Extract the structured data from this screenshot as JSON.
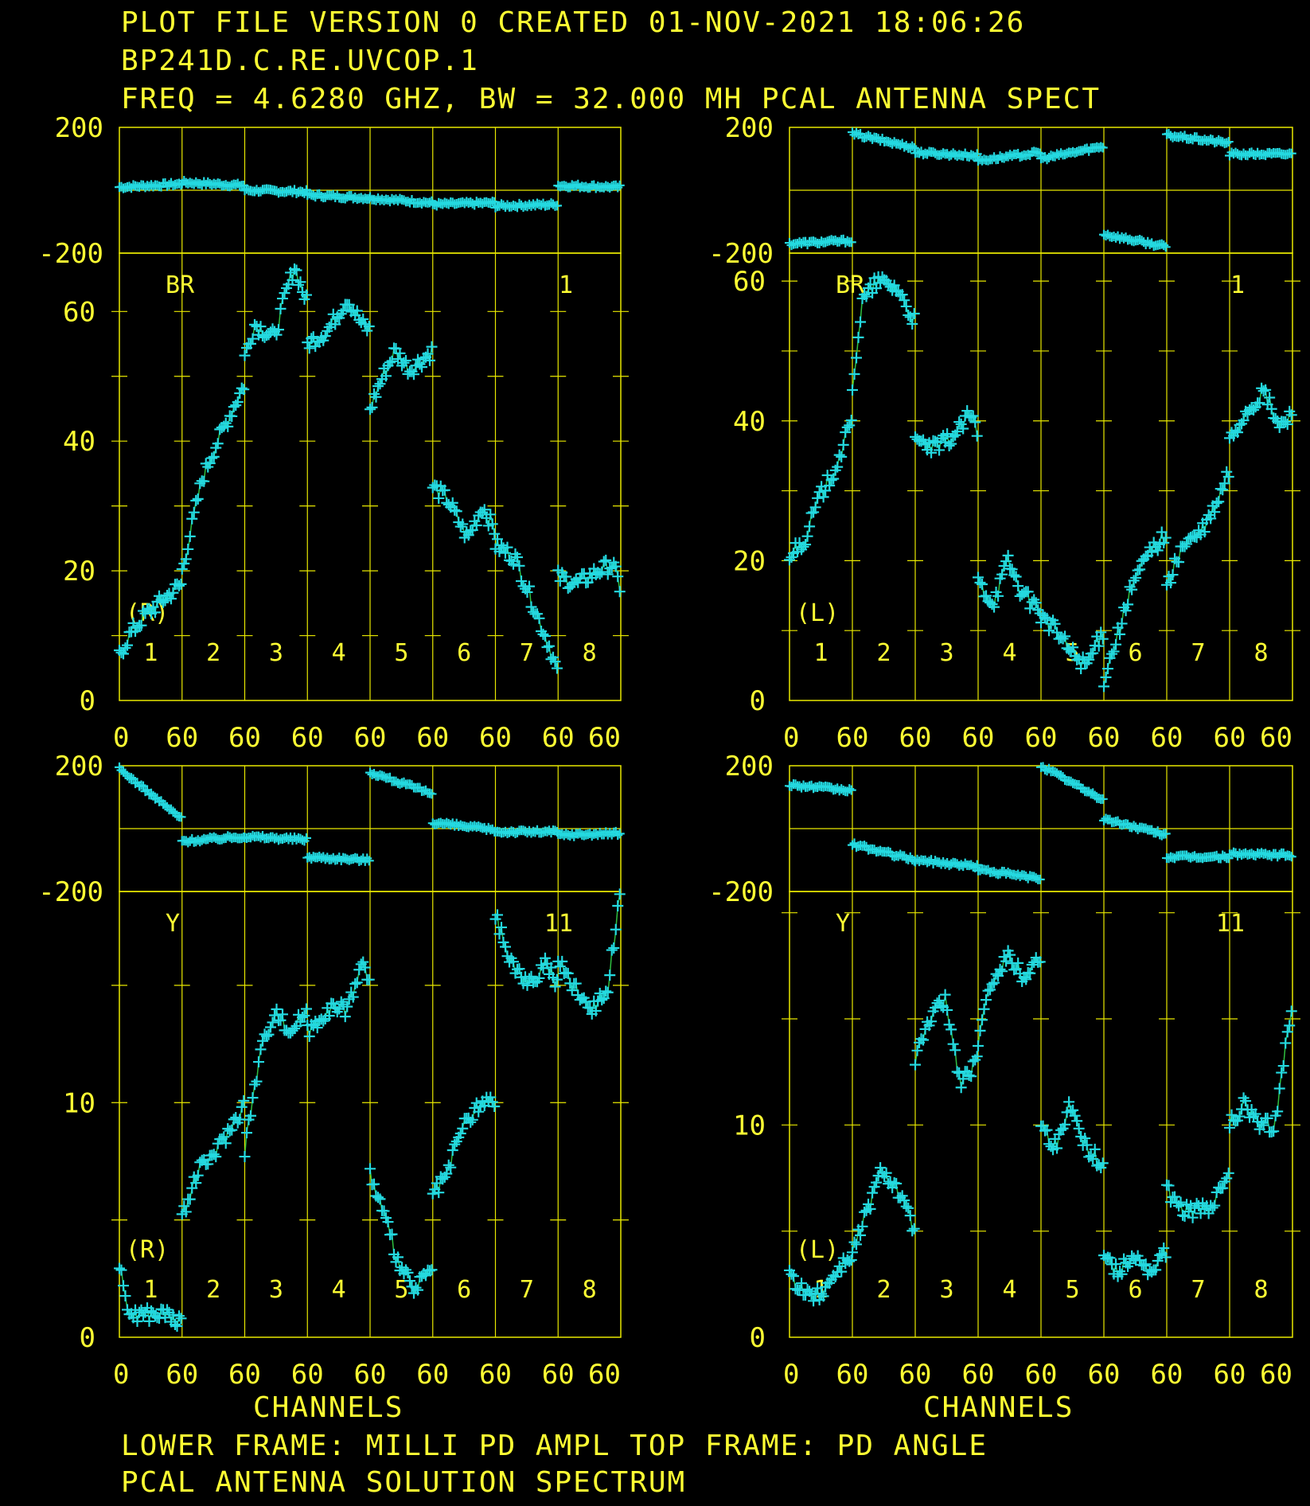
{
  "header": {
    "line1": "PLOT FILE VERSION 0  CREATED 01-NOV-2021 18:06:26",
    "line2": "BP241D.C.RE.UVCOP.1",
    "line3": "FREQ = 4.6280 GHZ, BW = 32.000 MH   PCAL ANTENNA SPECT"
  },
  "footer": {
    "xlabel": "CHANNELS",
    "line1": "LOWER FRAME: MILLI PD AMPL   TOP FRAME: PD ANGLE",
    "line2": "PCAL ANTENNA SOLUTION SPECTRUM"
  },
  "colors": {
    "text": "#ffff33",
    "grid": "#e8e800",
    "marker": "#24d9e0",
    "line": "#2fbf3f",
    "background": "#000000"
  },
  "chart_data": [
    {
      "type": "scatter",
      "antenna": "BR",
      "polarization": "(R)",
      "source_number": "1",
      "phase_ylim": [
        -200,
        200
      ],
      "phase_ticks": [
        "200",
        "-200"
      ],
      "amp_ylim": [
        0,
        69
      ],
      "amp_ticks": [
        "60",
        "40",
        "20",
        "0"
      ],
      "amp_tick_values": [
        60,
        40,
        20,
        0
      ],
      "if_labels": [
        "1",
        "2",
        "3",
        "4",
        "5",
        "6",
        "7",
        "8"
      ],
      "x_tick_labels": [
        "0",
        "60",
        "60",
        "60",
        "60",
        "60",
        "60",
        "60",
        "60"
      ],
      "phase_series": [
        {
          "if": 1,
          "start": 10,
          "end": 20
        },
        {
          "if": 2,
          "start": 25,
          "end": 15
        },
        {
          "if": 3,
          "start": 0,
          "end": -5
        },
        {
          "if": 4,
          "start": -15,
          "end": -25
        },
        {
          "if": 5,
          "start": -25,
          "end": -40
        },
        {
          "if": 6,
          "start": -45,
          "end": -40
        },
        {
          "if": 7,
          "start": -50,
          "end": -45
        },
        {
          "if": 8,
          "start": 15,
          "end": 10
        }
      ],
      "amp_series": [
        {
          "if": 1,
          "points": [
            [
              0,
              7
            ],
            [
              10,
              10
            ],
            [
              25,
              13
            ],
            [
              40,
              15
            ],
            [
              55,
              17
            ],
            [
              63,
              18
            ]
          ]
        },
        {
          "if": 2,
          "points": [
            [
              0,
              20
            ],
            [
              10,
              27
            ],
            [
              20,
              34
            ],
            [
              30,
              38
            ],
            [
              45,
              43
            ],
            [
              63,
              49
            ]
          ]
        },
        {
          "if": 3,
          "points": [
            [
              0,
              53
            ],
            [
              10,
              58
            ],
            [
              30,
              56
            ],
            [
              40,
              62
            ],
            [
              50,
              67
            ],
            [
              63,
              61
            ]
          ]
        },
        {
          "if": 4,
          "points": [
            [
              0,
              55
            ],
            [
              20,
              57
            ],
            [
              40,
              62
            ],
            [
              55,
              58
            ],
            [
              63,
              57
            ]
          ]
        },
        {
          "if": 5,
          "points": [
            [
              0,
              45
            ],
            [
              10,
              49
            ],
            [
              25,
              54
            ],
            [
              40,
              51
            ],
            [
              63,
              54
            ]
          ]
        },
        {
          "if": 6,
          "points": [
            [
              0,
              33
            ],
            [
              15,
              31
            ],
            [
              35,
              25
            ],
            [
              50,
              30
            ],
            [
              63,
              26
            ]
          ]
        },
        {
          "if": 7,
          "points": [
            [
              0,
              24
            ],
            [
              20,
              22
            ],
            [
              40,
              14
            ],
            [
              55,
              8
            ],
            [
              63,
              4
            ]
          ]
        },
        {
          "if": 8,
          "points": [
            [
              0,
              19
            ],
            [
              20,
              18
            ],
            [
              40,
              20
            ],
            [
              55,
              21
            ],
            [
              63,
              17
            ]
          ]
        }
      ]
    },
    {
      "type": "scatter",
      "antenna": "BR",
      "polarization": "(L)",
      "source_number": "1",
      "phase_ylim": [
        -200,
        200
      ],
      "phase_ticks": [
        "200",
        "-200"
      ],
      "amp_ylim": [
        0,
        64
      ],
      "amp_ticks": [
        "60",
        "40",
        "20",
        "0"
      ],
      "amp_tick_values": [
        60,
        40,
        20,
        0
      ],
      "if_labels": [
        "1",
        "2",
        "3",
        "4",
        "5",
        "6",
        "7",
        "8"
      ],
      "x_tick_labels": [
        "0",
        "60",
        "60",
        "60",
        "60",
        "60",
        "60",
        "60",
        "60"
      ],
      "phase_series": [
        {
          "if": 1,
          "start": -170,
          "end": -160
        },
        {
          "if": 2,
          "start": 180,
          "end": 135
        },
        {
          "if": 3,
          "start": 120,
          "end": 110
        },
        {
          "if": 4,
          "start": 95,
          "end": 120
        },
        {
          "if": 5,
          "start": 100,
          "end": 140
        },
        {
          "if": 6,
          "start": -140,
          "end": -180
        },
        {
          "if": 7,
          "start": 175,
          "end": 150
        },
        {
          "if": 8,
          "start": 115,
          "end": 115
        }
      ],
      "amp_series": [
        {
          "if": 1,
          "points": [
            [
              0,
              21
            ],
            [
              15,
              23
            ],
            [
              30,
              29
            ],
            [
              45,
              33
            ],
            [
              63,
              40
            ]
          ]
        },
        {
          "if": 2,
          "points": [
            [
              0,
              45
            ],
            [
              10,
              57
            ],
            [
              25,
              60
            ],
            [
              45,
              59
            ],
            [
              63,
              54
            ]
          ]
        },
        {
          "if": 3,
          "points": [
            [
              0,
              37
            ],
            [
              20,
              36
            ],
            [
              40,
              38
            ],
            [
              55,
              41
            ],
            [
              63,
              38
            ]
          ]
        },
        {
          "if": 4,
          "points": [
            [
              0,
              17
            ],
            [
              15,
              14
            ],
            [
              30,
              20
            ],
            [
              45,
              15
            ],
            [
              63,
              13
            ]
          ]
        },
        {
          "if": 5,
          "points": [
            [
              0,
              12
            ],
            [
              15,
              10
            ],
            [
              30,
              7
            ],
            [
              45,
              5
            ],
            [
              63,
              10
            ]
          ]
        },
        {
          "if": 6,
          "points": [
            [
              0,
              3
            ],
            [
              15,
              10
            ],
            [
              30,
              17
            ],
            [
              45,
              21
            ],
            [
              63,
              24
            ]
          ]
        },
        {
          "if": 7,
          "points": [
            [
              0,
              16
            ],
            [
              15,
              22
            ],
            [
              35,
              24
            ],
            [
              50,
              28
            ],
            [
              63,
              33
            ]
          ]
        },
        {
          "if": 8,
          "points": [
            [
              0,
              37
            ],
            [
              15,
              41
            ],
            [
              35,
              44
            ],
            [
              50,
              39
            ],
            [
              63,
              41
            ]
          ]
        }
      ]
    },
    {
      "type": "scatter",
      "antenna": "Y",
      "polarization": "(R)",
      "source_number": "11",
      "phase_ylim": [
        -200,
        200
      ],
      "phase_ticks": [
        "200",
        "-200"
      ],
      "amp_ylim": [
        0,
        19
      ],
      "amp_ticks": [
        "10",
        "0"
      ],
      "amp_tick_values": [
        10,
        0
      ],
      "if_labels": [
        "1",
        "2",
        "3",
        "4",
        "5",
        "6",
        "7",
        "8"
      ],
      "x_tick_labels": [
        "0",
        "60",
        "60",
        "60",
        "60",
        "60",
        "60",
        "60",
        "60"
      ],
      "phase_series": [
        {
          "if": 1,
          "start": 190,
          "end": 30
        },
        {
          "if": 2,
          "start": -40,
          "end": -25
        },
        {
          "if": 3,
          "start": -25,
          "end": -35
        },
        {
          "if": 4,
          "start": -90,
          "end": -100
        },
        {
          "if": 5,
          "start": 180,
          "end": 110
        },
        {
          "if": 6,
          "start": 20,
          "end": -5
        },
        {
          "if": 7,
          "start": -10,
          "end": -10
        },
        {
          "if": 8,
          "start": -20,
          "end": -15
        }
      ],
      "amp_series": [
        {
          "if": 1,
          "points": [
            [
              0,
              3
            ],
            [
              10,
              1
            ],
            [
              30,
              1
            ],
            [
              50,
              1
            ],
            [
              63,
              0.5
            ]
          ]
        },
        {
          "if": 2,
          "points": [
            [
              0,
              5
            ],
            [
              15,
              7
            ],
            [
              35,
              8
            ],
            [
              50,
              9
            ],
            [
              63,
              10
            ]
          ]
        },
        {
          "if": 3,
          "points": [
            [
              0,
              8
            ],
            [
              15,
              12
            ],
            [
              30,
              14
            ],
            [
              45,
              13
            ],
            [
              63,
              14
            ]
          ]
        },
        {
          "if": 4,
          "points": [
            [
              0,
              13
            ],
            [
              20,
              14
            ],
            [
              40,
              14
            ],
            [
              55,
              16
            ],
            [
              63,
              15
            ]
          ]
        },
        {
          "if": 5,
          "points": [
            [
              0,
              7
            ],
            [
              15,
              5
            ],
            [
              30,
              3
            ],
            [
              45,
              2
            ],
            [
              63,
              3
            ]
          ]
        },
        {
          "if": 6,
          "points": [
            [
              0,
              6
            ],
            [
              15,
              7
            ],
            [
              30,
              9
            ],
            [
              50,
              10
            ],
            [
              63,
              10
            ]
          ]
        },
        {
          "if": 7,
          "points": [
            [
              0,
              18
            ],
            [
              15,
              16
            ],
            [
              35,
              15
            ],
            [
              50,
              16
            ],
            [
              63,
              15
            ]
          ]
        },
        {
          "if": 8,
          "points": [
            [
              0,
              16
            ],
            [
              15,
              15
            ],
            [
              35,
              14
            ],
            [
              50,
              15
            ],
            [
              63,
              19
            ]
          ]
        }
      ]
    },
    {
      "type": "scatter",
      "antenna": "Y",
      "polarization": "(L)",
      "source_number": "11",
      "phase_ylim": [
        -200,
        200
      ],
      "phase_ticks": [
        "200",
        "-200"
      ],
      "amp_ylim": [
        0,
        21
      ],
      "amp_ticks": [
        "10",
        "0"
      ],
      "amp_tick_values": [
        10,
        0
      ],
      "if_labels": [
        "1",
        "2",
        "3",
        "4",
        "5",
        "6",
        "7",
        "8"
      ],
      "x_tick_labels": [
        "0",
        "60",
        "60",
        "60",
        "60",
        "60",
        "60",
        "60",
        "60"
      ],
      "phase_series": [
        {
          "if": 1,
          "start": 140,
          "end": 120
        },
        {
          "if": 2,
          "start": -50,
          "end": -100
        },
        {
          "if": 3,
          "start": -100,
          "end": -120
        },
        {
          "if": 4,
          "start": -130,
          "end": -160
        },
        {
          "if": 5,
          "start": 200,
          "end": 90
        },
        {
          "if": 6,
          "start": 30,
          "end": -20
        },
        {
          "if": 7,
          "start": -90,
          "end": -90
        },
        {
          "if": 8,
          "start": -80,
          "end": -85
        }
      ],
      "amp_series": [
        {
          "if": 1,
          "points": [
            [
              0,
              3
            ],
            [
              15,
              2
            ],
            [
              30,
              2
            ],
            [
              45,
              3
            ],
            [
              63,
              4
            ]
          ]
        },
        {
          "if": 2,
          "points": [
            [
              0,
              4
            ],
            [
              15,
              6
            ],
            [
              30,
              8
            ],
            [
              45,
              7
            ],
            [
              63,
              5
            ]
          ]
        },
        {
          "if": 3,
          "points": [
            [
              0,
              13
            ],
            [
              15,
              15
            ],
            [
              30,
              16
            ],
            [
              45,
              12
            ],
            [
              63,
              13
            ]
          ]
        },
        {
          "if": 4,
          "points": [
            [
              0,
              14
            ],
            [
              15,
              17
            ],
            [
              30,
              18
            ],
            [
              45,
              17
            ],
            [
              63,
              18
            ]
          ]
        },
        {
          "if": 5,
          "points": [
            [
              0,
              10
            ],
            [
              15,
              9
            ],
            [
              30,
              11
            ],
            [
              45,
              9
            ],
            [
              63,
              8
            ]
          ]
        },
        {
          "if": 6,
          "points": [
            [
              0,
              4
            ],
            [
              15,
              3
            ],
            [
              30,
              4
            ],
            [
              45,
              3
            ],
            [
              63,
              4
            ]
          ]
        },
        {
          "if": 7,
          "points": [
            [
              0,
              7
            ],
            [
              15,
              6
            ],
            [
              30,
              6
            ],
            [
              45,
              6
            ],
            [
              63,
              8
            ]
          ]
        },
        {
          "if": 8,
          "points": [
            [
              0,
              10
            ],
            [
              15,
              11
            ],
            [
              30,
              10
            ],
            [
              45,
              10
            ],
            [
              63,
              16
            ]
          ]
        }
      ]
    }
  ]
}
